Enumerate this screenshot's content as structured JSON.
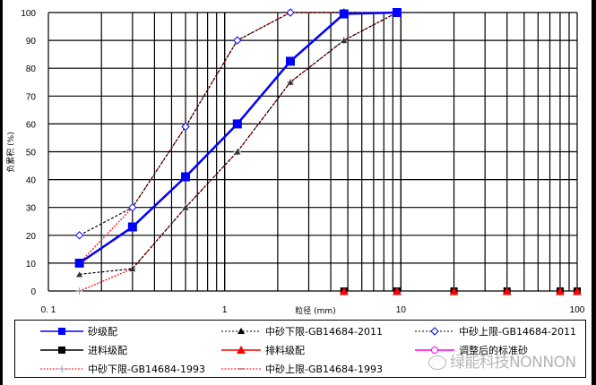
{
  "chart_data": {
    "type": "line",
    "title": "",
    "xlabel": "粒径 (mm)",
    "ylabel": "负累积 (%)",
    "xscale": "log",
    "xlim": [
      0.1,
      100
    ],
    "ylim": [
      0,
      100
    ],
    "x_tick_labels": [
      "0.1",
      "1",
      "10",
      "100"
    ],
    "y_tick_labels": [
      "0",
      "10",
      "20",
      "30",
      "40",
      "50",
      "60",
      "70",
      "80",
      "90",
      "100"
    ],
    "grid": true,
    "legend_position": "bottom",
    "series": [
      {
        "name": "砂级配",
        "color": "#0000ff",
        "style": "solid",
        "marker": "square",
        "x": [
          0.15,
          0.3,
          0.6,
          1.18,
          2.36,
          4.75,
          9.5
        ],
        "values": [
          10,
          23,
          41,
          60,
          82.5,
          99.5,
          100
        ]
      },
      {
        "name": "中砂下限-GB14684-2011",
        "color": "#000000",
        "style": "dashed",
        "marker": "triangle",
        "x": [
          0.15,
          0.3,
          0.6,
          1.18,
          2.36,
          4.75,
          9.5
        ],
        "values": [
          6,
          8,
          30,
          50,
          75,
          90,
          100
        ]
      },
      {
        "name": "中砂上限-GB14684-2011",
        "color": "#000000",
        "style": "dashed",
        "marker": "diamond",
        "x": [
          0.15,
          0.3,
          0.6,
          1.18,
          2.36,
          4.75,
          9.5
        ],
        "values": [
          20,
          30,
          59,
          90,
          100,
          100,
          100
        ]
      },
      {
        "name": "进料级配",
        "color": "#000000",
        "style": "solid",
        "marker": "square",
        "x": [
          4.75,
          9.5,
          20,
          40,
          80,
          100
        ],
        "values": [
          0,
          0,
          0,
          0,
          0,
          0
        ]
      },
      {
        "name": "排料级配",
        "color": "#ff0000",
        "style": "solid",
        "marker": "triangle",
        "x": [
          4.75,
          9.5,
          20,
          40,
          80,
          100
        ],
        "values": [
          0,
          0,
          0,
          0,
          0,
          0
        ]
      },
      {
        "name": "调整后的标准砂",
        "color": "#ff00ff",
        "style": "solid",
        "marker": "circle",
        "x": [],
        "values": []
      },
      {
        "name": "中砂下限-GB14684-1993",
        "color": "#ff0000",
        "style": "dotted",
        "marker": "plus",
        "x": [
          0.15,
          0.3,
          0.6,
          1.18,
          2.36,
          4.75,
          9.5
        ],
        "values": [
          0,
          8,
          30,
          50,
          75,
          90,
          100
        ]
      },
      {
        "name": "中砂上限-GB14684-1993",
        "color": "#ff0000",
        "style": "dotted",
        "marker": "dash",
        "x": [
          0.15,
          0.3,
          0.6,
          1.18,
          2.36,
          4.75,
          9.5
        ],
        "values": [
          10,
          30,
          59,
          90,
          100,
          100,
          100
        ]
      }
    ]
  },
  "legend": {
    "items": [
      {
        "label": "砂级配"
      },
      {
        "label": "中砂下限-GB14684-2011"
      },
      {
        "label": "中砂上限-GB14684-2011"
      },
      {
        "label": "进料级配"
      },
      {
        "label": "排料级配"
      },
      {
        "label": "调整后的标准砂"
      },
      {
        "label": "中砂下限-GB14684-1993"
      },
      {
        "label": "中砂上限-GB14684-1993"
      }
    ]
  },
  "watermark": {
    "text": "绿能科技NONNON"
  }
}
